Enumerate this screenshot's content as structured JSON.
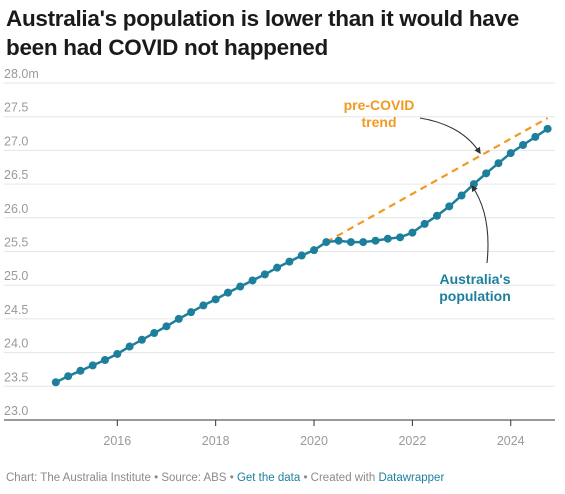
{
  "title": "Australia's population is lower than it would have been had COVID not happened",
  "footer": {
    "chart_credit": "Chart: The Australia Institute",
    "sep1": " • ",
    "source": "Source: ABS",
    "sep2": " • ",
    "get_data": "Get the data",
    "sep3": " • ",
    "created_with": "Created with ",
    "datawrapper": "Datawrapper"
  },
  "colors": {
    "population": "#1d7f9c",
    "trend": "#f29a1f",
    "arrow": "#333333"
  },
  "chart_data": {
    "type": "line",
    "title": "Australia's population is lower than it would have been had COVID not happened",
    "xlabel": "",
    "ylabel": "",
    "xlim": [
      2014.55,
      2024.9
    ],
    "ylim": [
      23.0,
      28.0
    ],
    "y_ticks": [
      {
        "value": 28.0,
        "label": "28.0m"
      },
      {
        "value": 27.5,
        "label": "27.5"
      },
      {
        "value": 27.0,
        "label": "27.0"
      },
      {
        "value": 26.5,
        "label": "26.5"
      },
      {
        "value": 26.0,
        "label": "26.0"
      },
      {
        "value": 25.5,
        "label": "25.5"
      },
      {
        "value": 25.0,
        "label": "25.0"
      },
      {
        "value": 24.5,
        "label": "24.5"
      },
      {
        "value": 24.0,
        "label": "24.0"
      },
      {
        "value": 23.5,
        "label": "23.5"
      },
      {
        "value": 23.0,
        "label": "23.0"
      }
    ],
    "x_ticks": [
      {
        "value": 2016,
        "label": "2016"
      },
      {
        "value": 2018,
        "label": "2018"
      },
      {
        "value": 2020,
        "label": "2020"
      },
      {
        "value": 2022,
        "label": "2022"
      },
      {
        "value": 2024,
        "label": "2024"
      }
    ],
    "grid": true,
    "series": [
      {
        "name": "Australia's population",
        "label_lines": [
          "Australia's",
          "population"
        ],
        "style": "solid-markers",
        "x": [
          2014.75,
          2015.0,
          2015.25,
          2015.5,
          2015.75,
          2016.0,
          2016.25,
          2016.5,
          2016.75,
          2017.0,
          2017.25,
          2017.5,
          2017.75,
          2018.0,
          2018.25,
          2018.5,
          2018.75,
          2019.0,
          2019.25,
          2019.5,
          2019.75,
          2020.0,
          2020.25,
          2020.5,
          2020.75,
          2021.0,
          2021.25,
          2021.5,
          2021.75,
          2022.0,
          2022.25,
          2022.5,
          2022.75,
          2023.0,
          2023.25,
          2023.5,
          2023.75,
          2024.0,
          2024.25,
          2024.5,
          2024.75
        ],
        "values": [
          23.56,
          23.65,
          23.73,
          23.81,
          23.89,
          23.98,
          24.09,
          24.19,
          24.29,
          24.39,
          24.5,
          24.6,
          24.7,
          24.79,
          24.89,
          24.98,
          25.07,
          25.16,
          25.26,
          25.35,
          25.44,
          25.52,
          25.64,
          25.66,
          25.64,
          25.64,
          25.66,
          25.69,
          25.71,
          25.78,
          25.91,
          26.03,
          26.17,
          26.33,
          26.5,
          26.66,
          26.81,
          26.96,
          27.08,
          27.2,
          27.32
        ]
      },
      {
        "name": "pre-COVID trend",
        "label_lines": [
          "pre-COVID",
          "trend"
        ],
        "style": "dashed",
        "x": [
          2020.25,
          2024.75
        ],
        "values": [
          25.64,
          27.48
        ]
      }
    ]
  }
}
